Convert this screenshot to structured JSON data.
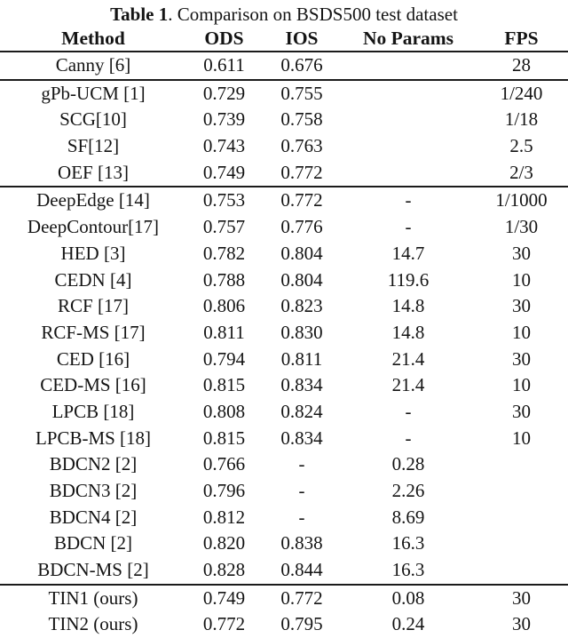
{
  "table": {
    "title": {
      "bold": "Table 1",
      "rest": ". Comparison on BSDS500 test dataset"
    },
    "columns": [
      "Method",
      "ODS",
      "IOS",
      "No Params",
      "FPS"
    ],
    "groups": [
      {
        "rows": [
          [
            "Canny [6]",
            "0.611",
            "0.676",
            "",
            "28"
          ]
        ]
      },
      {
        "rows": [
          [
            "gPb-UCM [1]",
            "0.729",
            "0.755",
            "",
            "1/240"
          ],
          [
            "SCG[10]",
            "0.739",
            "0.758",
            "",
            "1/18"
          ],
          [
            "SF[12]",
            "0.743",
            "0.763",
            "",
            "2.5"
          ],
          [
            "OEF [13]",
            "0.749",
            "0.772",
            "",
            "2/3"
          ]
        ]
      },
      {
        "rows": [
          [
            "DeepEdge [14]",
            "0.753",
            "0.772",
            "-",
            "1/1000"
          ],
          [
            "DeepContour[17]",
            "0.757",
            "0.776",
            "-",
            "1/30"
          ],
          [
            "HED [3]",
            "0.782",
            "0.804",
            "14.7",
            "30"
          ],
          [
            "CEDN [4]",
            "0.788",
            "0.804",
            "119.6",
            "10"
          ],
          [
            "RCF [17]",
            "0.806",
            "0.823",
            "14.8",
            "30"
          ],
          [
            "RCF-MS [17]",
            "0.811",
            "0.830",
            "14.8",
            "10"
          ],
          [
            "CED [16]",
            "0.794",
            "0.811",
            "21.4",
            "30"
          ],
          [
            "CED-MS [16]",
            "0.815",
            "0.834",
            "21.4",
            "10"
          ],
          [
            "LPCB [18]",
            "0.808",
            "0.824",
            "-",
            "30"
          ],
          [
            "LPCB-MS [18]",
            "0.815",
            "0.834",
            "-",
            "10"
          ],
          [
            "BDCN2 [2]",
            "0.766",
            "-",
            "0.28",
            ""
          ],
          [
            "BDCN3 [2]",
            "0.796",
            "-",
            "2.26",
            ""
          ],
          [
            "BDCN4 [2]",
            "0.812",
            "-",
            "8.69",
            ""
          ],
          [
            "BDCN [2]",
            "0.820",
            "0.838",
            "16.3",
            ""
          ],
          [
            "BDCN-MS [2]",
            "0.828",
            "0.844",
            "16.3",
            ""
          ]
        ]
      },
      {
        "rows": [
          [
            "TIN1 (ours)",
            "0.749",
            "0.772",
            "0.08",
            "30"
          ],
          [
            "TIN2 (ours)",
            "0.772",
            "0.795",
            "0.24",
            "30"
          ]
        ]
      }
    ],
    "colors": {
      "text": "#141414",
      "rule": "#1b1b1b",
      "background": "#ffffff"
    }
  }
}
